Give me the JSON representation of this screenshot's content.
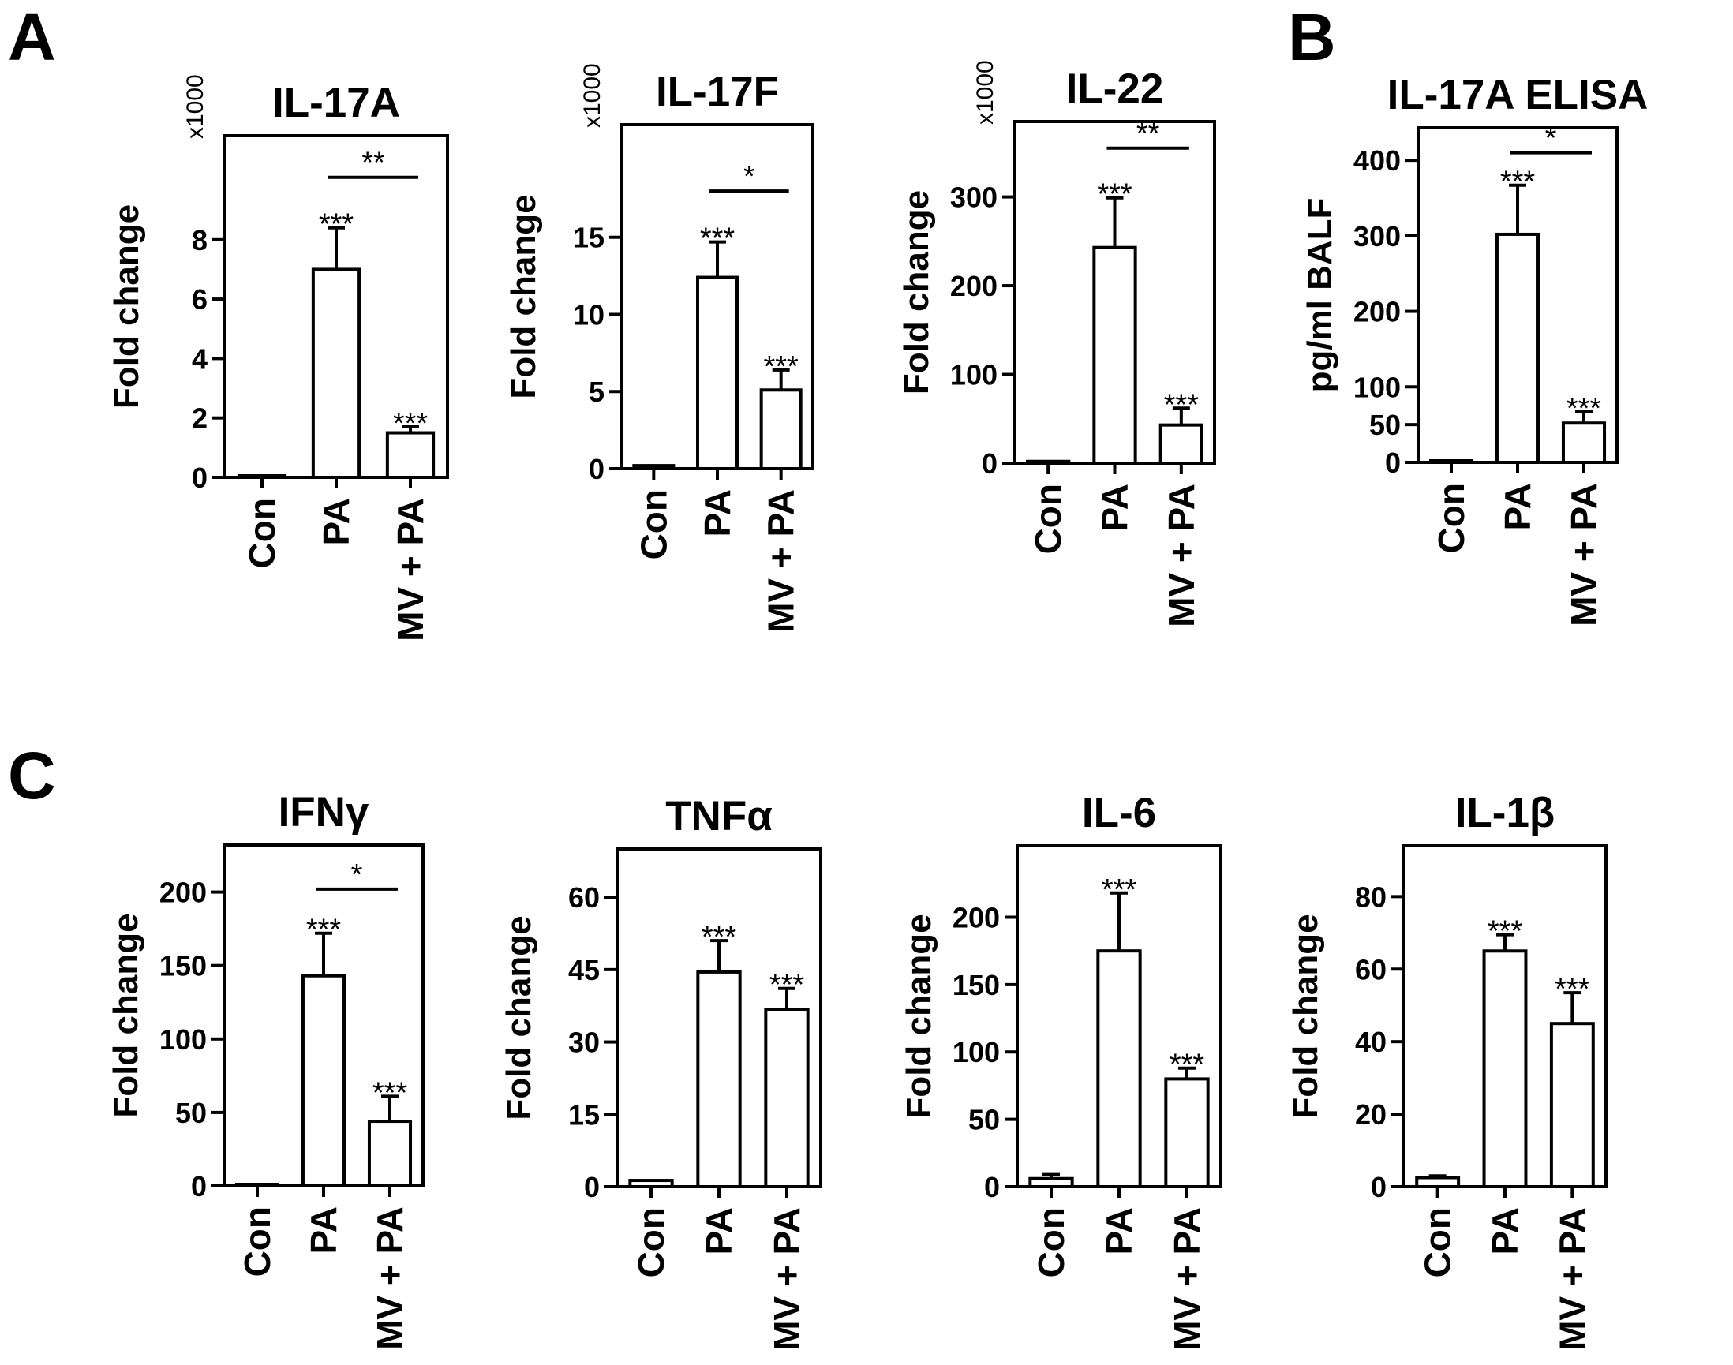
{
  "panels": [
    {
      "letter": "A"
    },
    {
      "letter": "B"
    },
    {
      "letter": "C"
    }
  ],
  "chart_data": [
    {
      "panel": "A",
      "type": "bar",
      "title": "IL-17A",
      "ylabel": "Fold change",
      "multiplier": "x1000",
      "categories": [
        "Con",
        "PA",
        "MV + PA"
      ],
      "values": [
        0.05,
        7.0,
        1.5
      ],
      "errors": [
        0.05,
        1.4,
        0.2
      ],
      "ylim": [
        0,
        11.5
      ],
      "yticks": [
        0,
        2,
        4,
        6,
        8
      ],
      "stars": [
        "",
        "***",
        "***"
      ],
      "brackets": [
        {
          "from": 1,
          "to": 2,
          "label": "**",
          "y": 10.1
        }
      ]
    },
    {
      "panel": "A",
      "type": "bar",
      "title": "IL-17F",
      "ylabel": "Fold change",
      "multiplier": "x1000",
      "categories": [
        "Con",
        "PA",
        "MV + PA"
      ],
      "values": [
        0.2,
        12.4,
        5.1
      ],
      "errors": [
        0.1,
        2.3,
        1.3
      ],
      "ylim": [
        0,
        22.3
      ],
      "yticks": [
        0,
        5,
        10,
        15
      ],
      "stars": [
        "",
        "***",
        "***"
      ],
      "brackets": [
        {
          "from": 1,
          "to": 2,
          "label": "*",
          "y": 18.0
        }
      ]
    },
    {
      "panel": "A",
      "type": "bar",
      "title": "IL-22",
      "ylabel": "Fold change",
      "multiplier": "x1000",
      "categories": [
        "Con",
        "PA",
        "MV + PA"
      ],
      "values": [
        2,
        243,
        43
      ],
      "errors": [
        1,
        56,
        19
      ],
      "ylim": [
        0,
        385
      ],
      "yticks": [
        0,
        100,
        200,
        300
      ],
      "stars": [
        "",
        "***",
        "***"
      ],
      "brackets": [
        {
          "from": 1,
          "to": 2,
          "label": "**",
          "y": 355
        }
      ]
    },
    {
      "panel": "B",
      "type": "bar",
      "title": "IL-17A ELISA",
      "ylabel": "pg/ml BALF",
      "multiplier": "",
      "categories": [
        "Con",
        "PA",
        "MV + PA"
      ],
      "values": [
        2,
        302,
        52
      ],
      "errors": [
        1,
        65,
        15
      ],
      "ylim": [
        0,
        443
      ],
      "yticks": [
        0,
        50,
        100,
        200,
        300,
        400
      ],
      "stars": [
        "",
        "***",
        "***"
      ],
      "brackets": [
        {
          "from": 1,
          "to": 2,
          "label": "*",
          "y": 410
        }
      ]
    },
    {
      "panel": "C",
      "type": "bar",
      "title": "IFNγ",
      "ylabel": "Fold change",
      "multiplier": "",
      "categories": [
        "Con",
        "PA",
        "MV + PA"
      ],
      "values": [
        1,
        143,
        44
      ],
      "errors": [
        0.5,
        29,
        17
      ],
      "ylim": [
        0,
        232
      ],
      "yticks": [
        0,
        50,
        100,
        150,
        200
      ],
      "stars": [
        "",
        "***",
        "***"
      ],
      "brackets": [
        {
          "from": 1,
          "to": 2,
          "label": "*",
          "y": 202
        }
      ]
    },
    {
      "panel": "C",
      "type": "bar",
      "title": "TNFα",
      "ylabel": "Fold change",
      "multiplier": "",
      "categories": [
        "Con",
        "PA",
        "MV + PA"
      ],
      "values": [
        1.3,
        44.5,
        36.8
      ],
      "errors": [
        0.4,
        6.5,
        4.3
      ],
      "ylim": [
        0,
        70
      ],
      "yticks": [
        0,
        15,
        30,
        45,
        60
      ],
      "stars": [
        "",
        "***",
        "***"
      ],
      "brackets": []
    },
    {
      "panel": "C",
      "type": "bar",
      "title": "IL-6",
      "ylabel": "Fold change",
      "multiplier": "",
      "categories": [
        "Con",
        "PA",
        "MV + PA"
      ],
      "values": [
        6,
        175,
        80
      ],
      "errors": [
        3,
        43,
        8
      ],
      "ylim": [
        0,
        253
      ],
      "yticks": [
        0,
        50,
        100,
        150,
        200
      ],
      "stars": [
        "",
        "***",
        "***"
      ],
      "brackets": []
    },
    {
      "panel": "C",
      "type": "bar",
      "title": "IL-1β",
      "ylabel": "Fold change",
      "multiplier": "",
      "categories": [
        "Con",
        "PA",
        "MV + PA"
      ],
      "values": [
        2.5,
        65,
        45
      ],
      "errors": [
        0.5,
        4.5,
        8.5
      ],
      "ylim": [
        0,
        94
      ],
      "yticks": [
        0,
        20,
        40,
        60,
        80
      ],
      "stars": [
        "",
        "***",
        "***"
      ],
      "brackets": []
    }
  ]
}
